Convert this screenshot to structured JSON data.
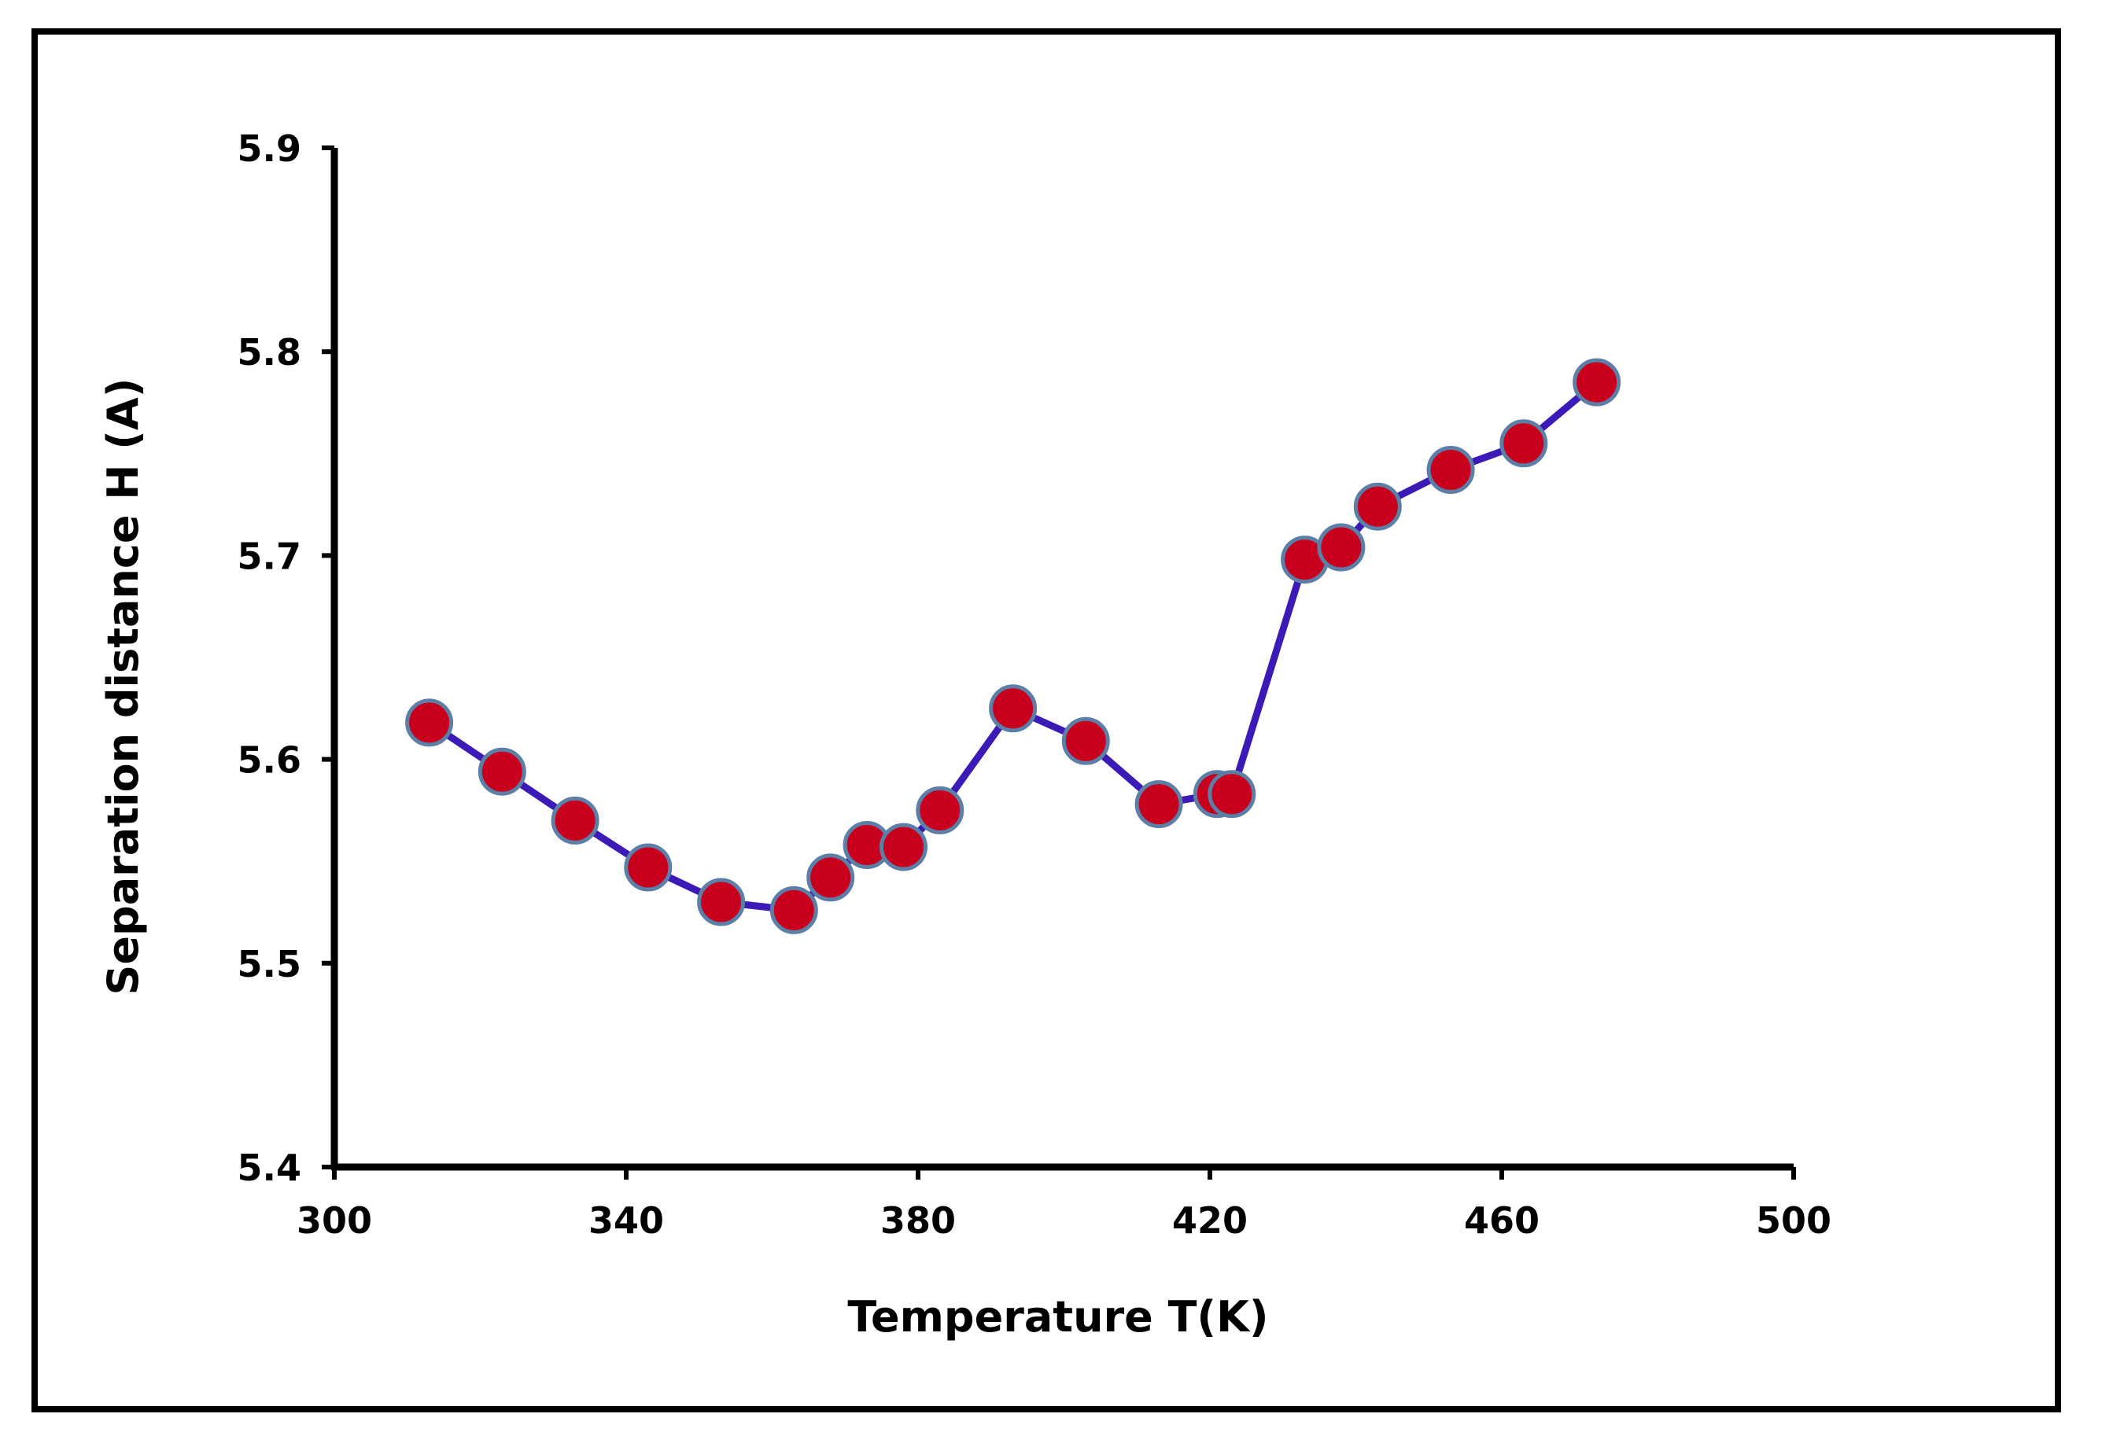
{
  "chart_data": {
    "type": "line",
    "title": "",
    "xlabel": "Temperature T(K)",
    "ylabel": "Separation distance H (A)",
    "xlim": [
      300,
      500
    ],
    "ylim": [
      5.4,
      5.9
    ],
    "xticks": [
      "300",
      "340",
      "380",
      "420",
      "460",
      "500"
    ],
    "yticks": [
      "5.4",
      "5.5",
      "5.6",
      "5.7",
      "5.8",
      "5.9"
    ],
    "grid": false,
    "legend": "none",
    "series": [
      {
        "name": "H",
        "line_color": "#3b1ab8",
        "marker_color": "#c8001e",
        "marker_edge_color": "#5b7fa6",
        "x": [
          313,
          323,
          333,
          343,
          353,
          363,
          368,
          373,
          378,
          383,
          393,
          403,
          413,
          421,
          423,
          433,
          438,
          443,
          453,
          463,
          473
        ],
        "y": [
          5.618,
          5.594,
          5.57,
          5.547,
          5.53,
          5.526,
          5.542,
          5.558,
          5.557,
          5.575,
          5.625,
          5.609,
          5.578,
          5.583,
          5.583,
          5.698,
          5.704,
          5.724,
          5.742,
          5.755,
          5.785
        ]
      }
    ]
  }
}
